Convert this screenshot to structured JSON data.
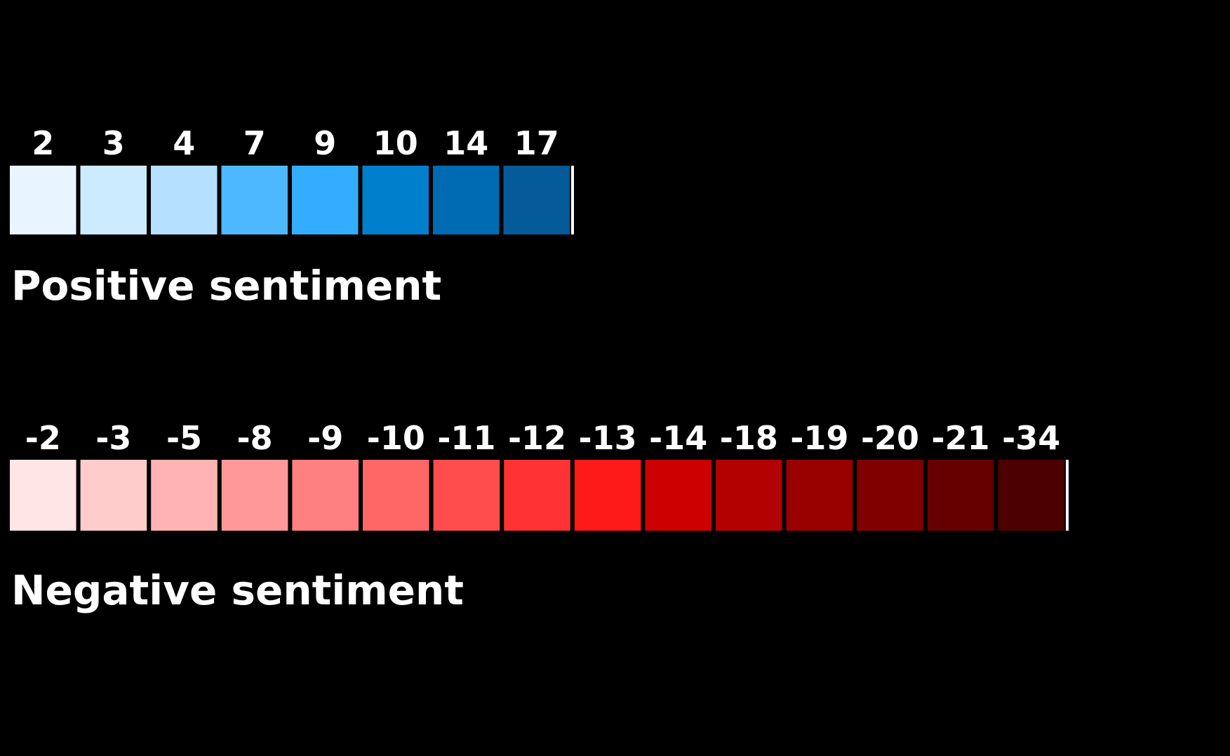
{
  "chart_data": [
    {
      "type": "legend",
      "title": "Positive sentiment",
      "items": [
        {
          "value": 2,
          "label": "2",
          "color": "#e8f5ff"
        },
        {
          "value": 3,
          "label": "3",
          "color": "#cdebff"
        },
        {
          "value": 4,
          "label": "4",
          "color": "#b6e0ff"
        },
        {
          "value": 7,
          "label": "7",
          "color": "#4db8ff"
        },
        {
          "value": 9,
          "label": "9",
          "color": "#33adff"
        },
        {
          "value": 10,
          "label": "10",
          "color": "#0080cc"
        },
        {
          "value": 14,
          "label": "14",
          "color": "#006bb3"
        },
        {
          "value": 17,
          "label": "17",
          "color": "#055b99"
        }
      ]
    },
    {
      "type": "legend",
      "title": "Negative sentiment",
      "items": [
        {
          "value": -2,
          "label": "-2",
          "color": "#ffe5e5"
        },
        {
          "value": -3,
          "label": "-3",
          "color": "#ffcccc"
        },
        {
          "value": -5,
          "label": "-5",
          "color": "#ffb3b3"
        },
        {
          "value": -8,
          "label": "-8",
          "color": "#ff9999"
        },
        {
          "value": -9,
          "label": "-9",
          "color": "#ff8080"
        },
        {
          "value": -10,
          "label": "-10",
          "color": "#ff6666"
        },
        {
          "value": -11,
          "label": "-11",
          "color": "#ff4d4d"
        },
        {
          "value": -12,
          "label": "-12",
          "color": "#ff3333"
        },
        {
          "value": -13,
          "label": "-13",
          "color": "#ff1a1a"
        },
        {
          "value": -14,
          "label": "-14",
          "color": "#cc0000"
        },
        {
          "value": -18,
          "label": "-18",
          "color": "#b30000"
        },
        {
          "value": -19,
          "label": "-19",
          "color": "#990000"
        },
        {
          "value": -20,
          "label": "-20",
          "color": "#800000"
        },
        {
          "value": -21,
          "label": "-21",
          "color": "#660000"
        },
        {
          "value": -34,
          "label": "-34",
          "color": "#4d0000"
        }
      ]
    }
  ]
}
